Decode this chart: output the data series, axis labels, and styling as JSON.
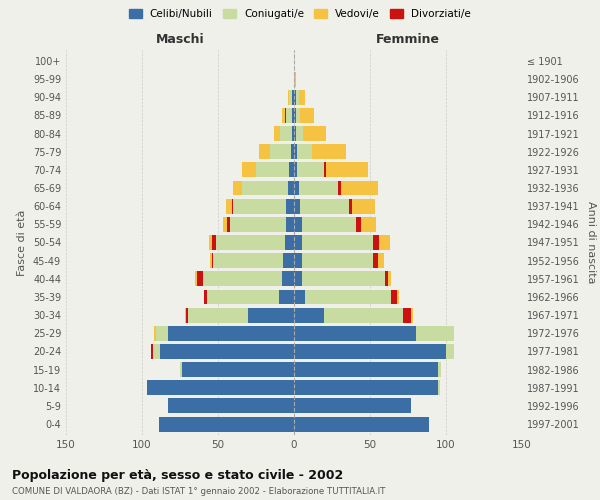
{
  "age_groups": [
    "0-4",
    "5-9",
    "10-14",
    "15-19",
    "20-24",
    "25-29",
    "30-34",
    "35-39",
    "40-44",
    "45-49",
    "50-54",
    "55-59",
    "60-64",
    "65-69",
    "70-74",
    "75-79",
    "80-84",
    "85-89",
    "90-94",
    "95-99",
    "100+"
  ],
  "birth_years": [
    "1997-2001",
    "1992-1996",
    "1987-1991",
    "1982-1986",
    "1977-1981",
    "1972-1976",
    "1967-1971",
    "1962-1966",
    "1957-1961",
    "1952-1956",
    "1947-1951",
    "1942-1946",
    "1937-1941",
    "1932-1936",
    "1927-1931",
    "1922-1926",
    "1917-1921",
    "1912-1916",
    "1907-1911",
    "1902-1906",
    "≤ 1901"
  ],
  "male": {
    "celibi": [
      89,
      83,
      97,
      74,
      88,
      83,
      30,
      10,
      8,
      7,
      6,
      5,
      5,
      4,
      3,
      2,
      1,
      1,
      1,
      0,
      0
    ],
    "coniugati": [
      0,
      0,
      0,
      1,
      5,
      8,
      40,
      47,
      52,
      46,
      45,
      37,
      35,
      30,
      22,
      14,
      8,
      4,
      2,
      0,
      0
    ],
    "vedovi": [
      0,
      0,
      0,
      0,
      0,
      1,
      1,
      0,
      1,
      1,
      2,
      3,
      4,
      6,
      9,
      7,
      4,
      2,
      1,
      0,
      0
    ],
    "divorziati": [
      0,
      0,
      0,
      0,
      1,
      0,
      1,
      2,
      4,
      1,
      3,
      2,
      1,
      0,
      0,
      0,
      0,
      1,
      0,
      0,
      0
    ]
  },
  "female": {
    "nubili": [
      89,
      77,
      95,
      95,
      100,
      80,
      20,
      7,
      5,
      5,
      5,
      5,
      4,
      3,
      2,
      2,
      1,
      1,
      1,
      0,
      0
    ],
    "coniugate": [
      0,
      0,
      1,
      2,
      5,
      25,
      52,
      57,
      55,
      47,
      47,
      36,
      32,
      26,
      18,
      10,
      5,
      3,
      2,
      0,
      0
    ],
    "vedove": [
      0,
      0,
      0,
      0,
      0,
      0,
      1,
      1,
      2,
      4,
      7,
      10,
      15,
      24,
      28,
      22,
      15,
      9,
      4,
      1,
      0
    ],
    "divorziate": [
      0,
      0,
      0,
      0,
      0,
      0,
      5,
      4,
      2,
      3,
      4,
      3,
      2,
      2,
      1,
      0,
      0,
      0,
      0,
      0,
      0
    ]
  },
  "colors": {
    "celibi": "#3a6ea5",
    "coniugati": "#c8dba0",
    "vedovi": "#f5c242",
    "divorziati": "#cc1111"
  },
  "legend_labels": [
    "Celibi/Nubili",
    "Coniugati/e",
    "Vedovi/e",
    "Divorziati/e"
  ],
  "title": "Popolazione per età, sesso e stato civile - 2002",
  "subtitle": "COMUNE DI VALDAORA (BZ) - Dati ISTAT 1° gennaio 2002 - Elaborazione TUTTITALIA.IT",
  "xlabel_left": "Maschi",
  "xlabel_right": "Femmine",
  "ylabel_left": "Fasce di età",
  "ylabel_right": "Anni di nascita",
  "xlim": 150,
  "bg_color": "#f0f0eb"
}
